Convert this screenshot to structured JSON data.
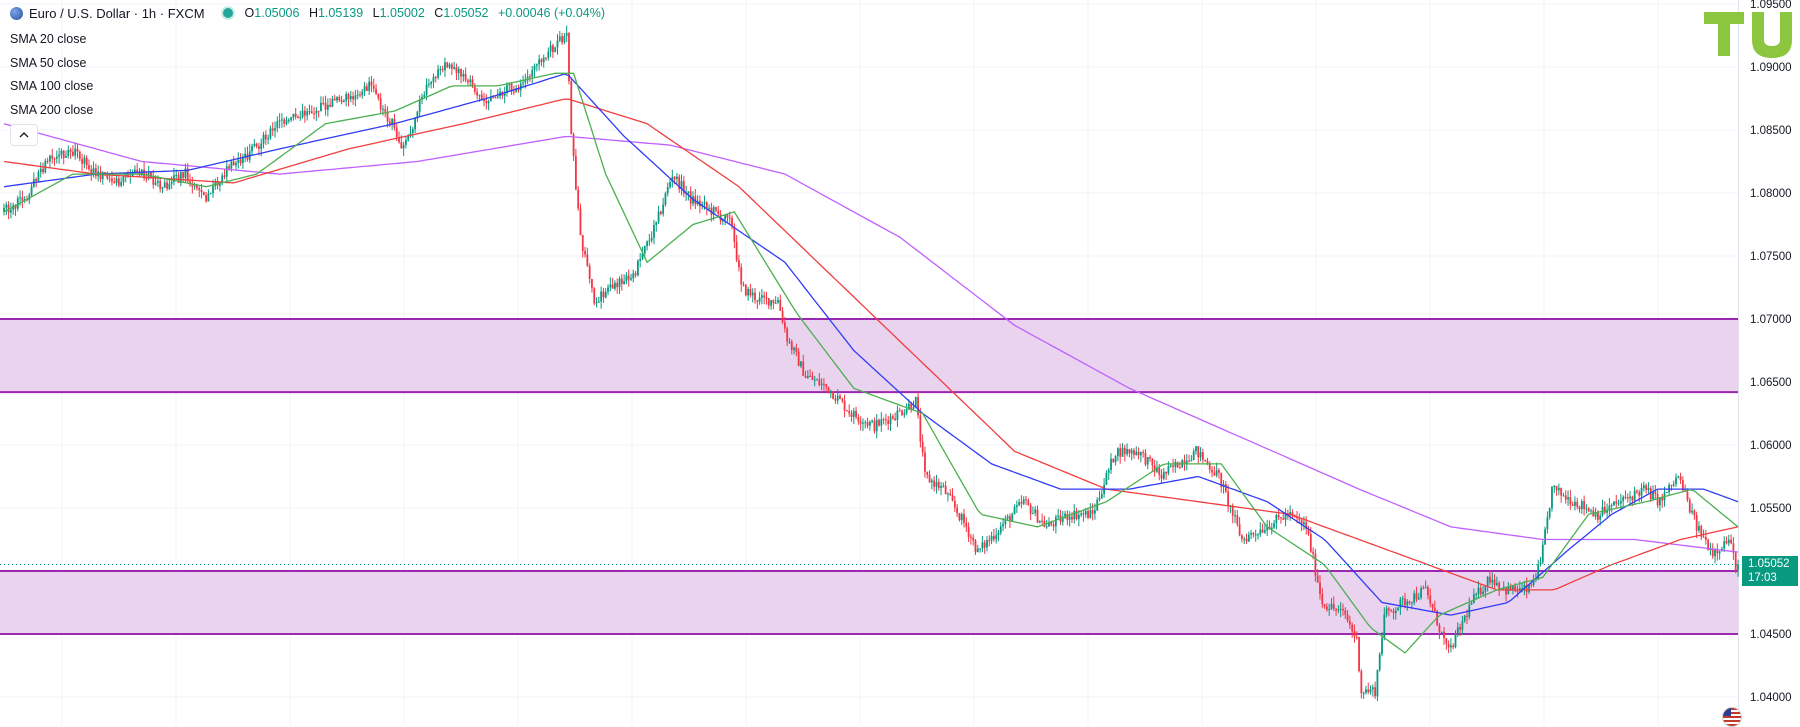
{
  "header": {
    "symbol": "Euro / U.S. Dollar · 1h · FXCM",
    "open_label": "O",
    "open": "1.05006",
    "high_label": "H",
    "high": "1.05139",
    "low_label": "L",
    "low": "1.05002",
    "close_label": "C",
    "close": "1.05052",
    "change": "+0.00046 (+0.04%)"
  },
  "indicators": [
    "SMA 20 close",
    "SMA 50 close",
    "SMA 100 close",
    "SMA 200 close"
  ],
  "collapse_icon": "chevron-up-icon",
  "logo_text": "TU",
  "last_price": {
    "value": "1.05052",
    "countdown": "17:03"
  },
  "colors": {
    "up": "#089981",
    "down": "#f23645",
    "sma20": "#4caf50",
    "sma50": "#2f3cf5",
    "sma100": "#f03e3e",
    "sma200": "#c061ff",
    "zone_fill": "#e9d3ef",
    "zone_line": "#9c27b0",
    "logo": "#8cc63f"
  },
  "chart_data": {
    "type": "candlestick",
    "y_ticks": [
      "1.09500",
      "1.09000",
      "1.08500",
      "1.08000",
      "1.07500",
      "1.07000",
      "1.06500",
      "1.06000",
      "1.05500",
      "1.05000",
      "1.04500",
      "1.04000"
    ],
    "ylim": [
      1.038,
      1.095
    ],
    "grid": true,
    "zones": [
      {
        "top": 1.07,
        "bottom": 1.0642
      },
      {
        "top": 1.05,
        "bottom": 1.045
      }
    ],
    "last_close": 1.05052,
    "trend_anchors": [
      [
        0,
        1.0785
      ],
      [
        10,
        1.0795
      ],
      [
        20,
        1.0825
      ],
      [
        30,
        1.0835
      ],
      [
        40,
        1.0818
      ],
      [
        50,
        1.0808
      ],
      [
        60,
        1.0818
      ],
      [
        70,
        1.0805
      ],
      [
        80,
        1.0815
      ],
      [
        88,
        1.0795
      ],
      [
        96,
        1.0815
      ],
      [
        110,
        1.0835
      ],
      [
        120,
        1.0855
      ],
      [
        135,
        1.0865
      ],
      [
        150,
        1.0875
      ],
      [
        160,
        1.0885
      ],
      [
        170,
        1.0855
      ],
      [
        175,
        1.0835
      ],
      [
        185,
        1.0885
      ],
      [
        195,
        1.0905
      ],
      [
        210,
        1.0875
      ],
      [
        225,
        1.0885
      ],
      [
        240,
        1.0915
      ],
      [
        246,
        1.0925
      ],
      [
        248,
        1.0845
      ],
      [
        252,
        1.0765
      ],
      [
        258,
        1.0715
      ],
      [
        265,
        1.0725
      ],
      [
        275,
        1.0735
      ],
      [
        285,
        1.0775
      ],
      [
        292,
        1.0815
      ],
      [
        300,
        1.0795
      ],
      [
        310,
        1.0785
      ],
      [
        318,
        1.0775
      ],
      [
        322,
        1.0725
      ],
      [
        330,
        1.0715
      ],
      [
        338,
        1.0715
      ],
      [
        342,
        1.0685
      ],
      [
        350,
        1.0655
      ],
      [
        360,
        1.0645
      ],
      [
        370,
        1.0625
      ],
      [
        380,
        1.0615
      ],
      [
        390,
        1.0625
      ],
      [
        398,
        1.0635
      ],
      [
        402,
        1.0575
      ],
      [
        410,
        1.0565
      ],
      [
        420,
        1.0535
      ],
      [
        425,
        1.0515
      ],
      [
        435,
        1.0535
      ],
      [
        445,
        1.0555
      ],
      [
        455,
        1.0535
      ],
      [
        465,
        1.0545
      ],
      [
        475,
        1.0545
      ],
      [
        485,
        1.0595
      ],
      [
        495,
        1.0595
      ],
      [
        505,
        1.0575
      ],
      [
        512,
        1.0585
      ],
      [
        520,
        1.0595
      ],
      [
        530,
        1.0575
      ],
      [
        540,
        1.0525
      ],
      [
        550,
        1.0535
      ],
      [
        560,
        1.0545
      ],
      [
        568,
        1.0535
      ],
      [
        575,
        1.0475
      ],
      [
        585,
        1.0465
      ],
      [
        590,
        1.0445
      ],
      [
        592,
        1.0405
      ],
      [
        598,
        1.0405
      ],
      [
        602,
        1.0465
      ],
      [
        610,
        1.0475
      ],
      [
        620,
        1.0485
      ],
      [
        630,
        1.0435
      ],
      [
        640,
        1.0475
      ],
      [
        648,
        1.0495
      ],
      [
        655,
        1.0485
      ],
      [
        665,
        1.0485
      ],
      [
        670,
        1.0505
      ],
      [
        675,
        1.0565
      ],
      [
        685,
        1.0555
      ],
      [
        695,
        1.0545
      ],
      [
        705,
        1.0555
      ],
      [
        715,
        1.0565
      ],
      [
        722,
        1.0555
      ],
      [
        730,
        1.0575
      ],
      [
        738,
        1.0535
      ],
      [
        745,
        1.0515
      ],
      [
        752,
        1.0525
      ],
      [
        755,
        1.05052
      ]
    ],
    "sma20": [
      [
        0,
        1.0785
      ],
      [
        30,
        1.0815
      ],
      [
        60,
        1.0815
      ],
      [
        88,
        1.0805
      ],
      [
        110,
        1.0815
      ],
      [
        140,
        1.0855
      ],
      [
        170,
        1.0865
      ],
      [
        195,
        1.0885
      ],
      [
        215,
        1.0885
      ],
      [
        240,
        1.0895
      ],
      [
        248,
        1.0895
      ],
      [
        262,
        1.0815
      ],
      [
        280,
        1.0745
      ],
      [
        300,
        1.0775
      ],
      [
        318,
        1.0785
      ],
      [
        345,
        1.0705
      ],
      [
        370,
        1.0645
      ],
      [
        400,
        1.0625
      ],
      [
        425,
        1.0545
      ],
      [
        450,
        1.0535
      ],
      [
        480,
        1.0555
      ],
      [
        505,
        1.0585
      ],
      [
        530,
        1.0585
      ],
      [
        550,
        1.0535
      ],
      [
        575,
        1.0505
      ],
      [
        595,
        1.0455
      ],
      [
        610,
        1.0435
      ],
      [
        625,
        1.0465
      ],
      [
        650,
        1.0485
      ],
      [
        670,
        1.0495
      ],
      [
        690,
        1.0545
      ],
      [
        715,
        1.0555
      ],
      [
        735,
        1.0565
      ],
      [
        755,
        1.0535
      ]
    ],
    "sma50": [
      [
        0,
        1.0805
      ],
      [
        40,
        1.0815
      ],
      [
        80,
        1.0818
      ],
      [
        120,
        1.0835
      ],
      [
        170,
        1.0855
      ],
      [
        210,
        1.0875
      ],
      [
        245,
        1.0895
      ],
      [
        270,
        1.0845
      ],
      [
        300,
        1.0795
      ],
      [
        340,
        1.0745
      ],
      [
        370,
        1.0675
      ],
      [
        400,
        1.0625
      ],
      [
        430,
        1.0585
      ],
      [
        460,
        1.0565
      ],
      [
        490,
        1.0565
      ],
      [
        520,
        1.0575
      ],
      [
        550,
        1.0555
      ],
      [
        575,
        1.0525
      ],
      [
        600,
        1.0475
      ],
      [
        630,
        1.0465
      ],
      [
        655,
        1.0475
      ],
      [
        680,
        1.0515
      ],
      [
        700,
        1.0545
      ],
      [
        720,
        1.0565
      ],
      [
        740,
        1.0565
      ],
      [
        755,
        1.0555
      ]
    ],
    "sma100": [
      [
        0,
        1.0825
      ],
      [
        40,
        1.0815
      ],
      [
        100,
        1.0808
      ],
      [
        150,
        1.0835
      ],
      [
        200,
        1.0855
      ],
      [
        245,
        1.0875
      ],
      [
        280,
        1.0855
      ],
      [
        320,
        1.0805
      ],
      [
        360,
        1.0735
      ],
      [
        400,
        1.0665
      ],
      [
        440,
        1.0595
      ],
      [
        480,
        1.0565
      ],
      [
        520,
        1.0555
      ],
      [
        560,
        1.0545
      ],
      [
        590,
        1.0525
      ],
      [
        620,
        1.0505
      ],
      [
        650,
        1.0485
      ],
      [
        675,
        1.0485
      ],
      [
        700,
        1.0505
      ],
      [
        730,
        1.0525
      ],
      [
        755,
        1.0535
      ]
    ],
    "sma200": [
      [
        0,
        1.0855
      ],
      [
        60,
        1.0825
      ],
      [
        120,
        1.0815
      ],
      [
        180,
        1.0825
      ],
      [
        245,
        1.0845
      ],
      [
        290,
        1.0838
      ],
      [
        340,
        1.0815
      ],
      [
        390,
        1.0765
      ],
      [
        440,
        1.0695
      ],
      [
        490,
        1.0645
      ],
      [
        540,
        1.0605
      ],
      [
        590,
        1.0565
      ],
      [
        630,
        1.0535
      ],
      [
        670,
        1.0525
      ],
      [
        710,
        1.0525
      ],
      [
        755,
        1.0515
      ]
    ]
  }
}
